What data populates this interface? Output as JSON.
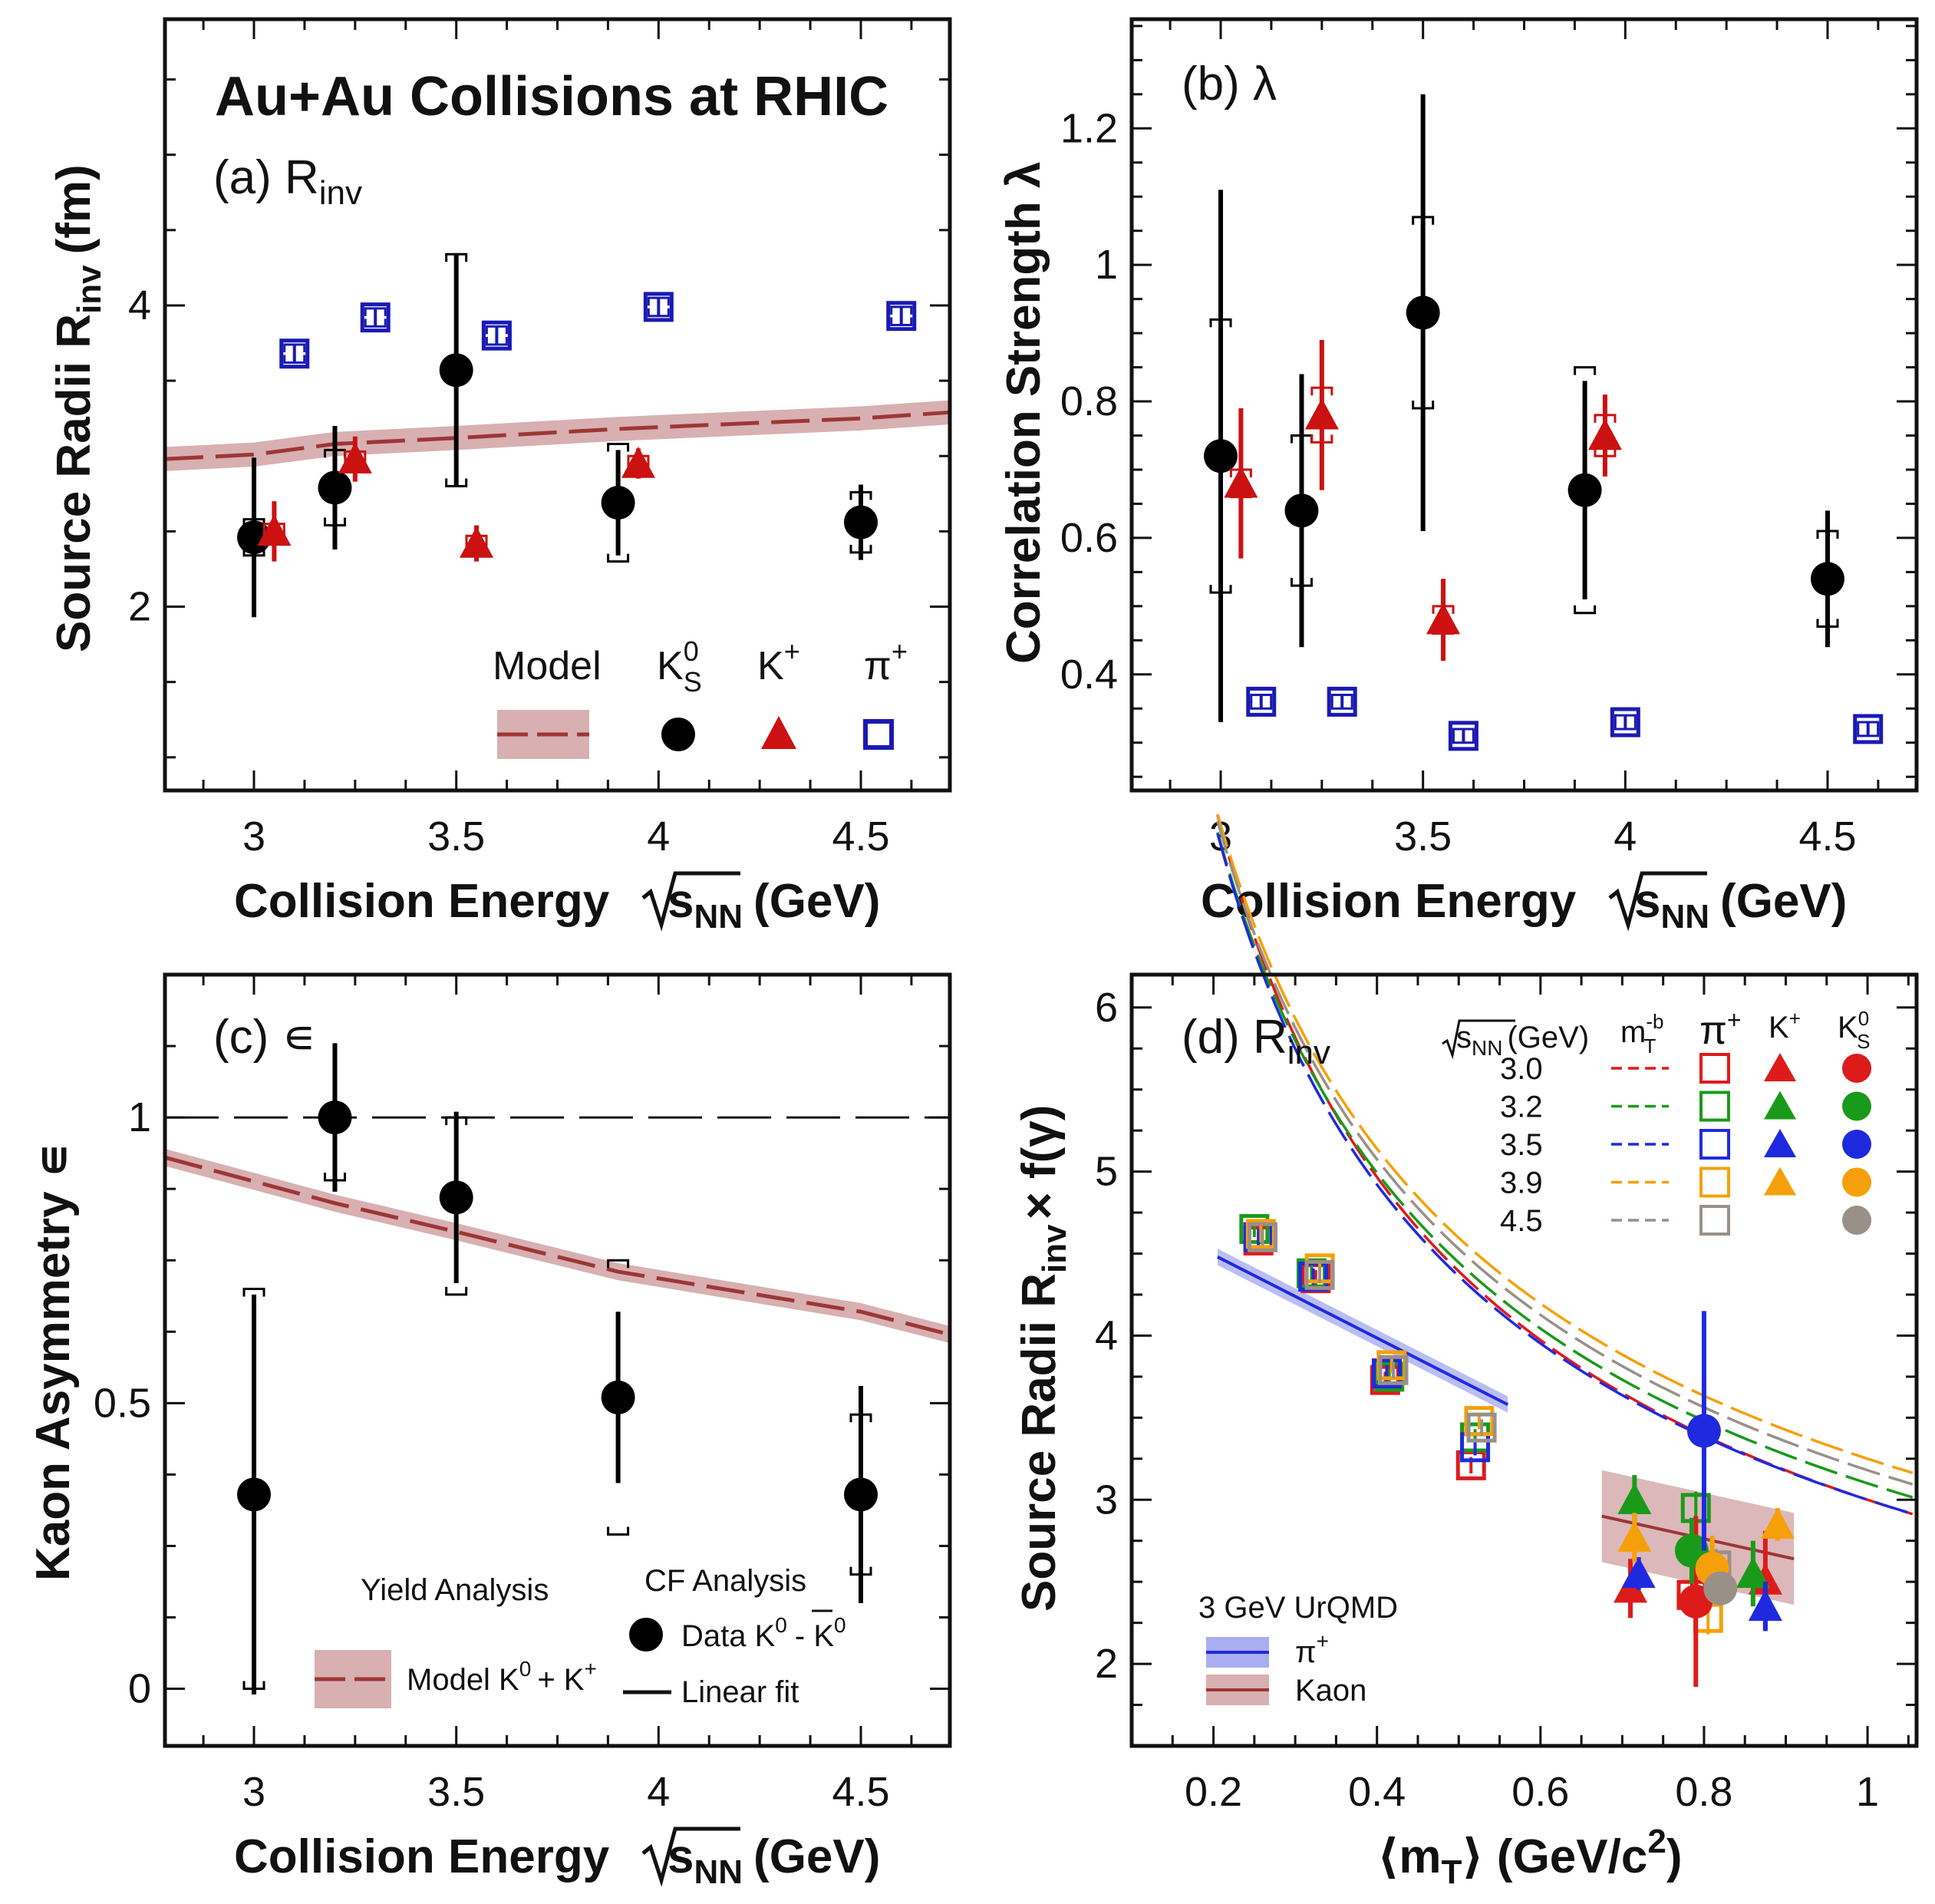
{
  "figure_title": "Au+Au Collisions at RHIC",
  "colors": {
    "ks0": "#000000",
    "kplus": "#cc1111",
    "piplus": "#1a1ab4",
    "model_line": "#9e3636",
    "model_band": "#d8b0b2",
    "e30": "#dd1b1b",
    "e32": "#1a9a1a",
    "e35": "#1f2adf",
    "e39": "#f5a00a",
    "e45": "#999088"
  },
  "chart_data": [
    {
      "id": "a",
      "type": "scatter",
      "panel_label": "(a) R",
      "panel_label_sub": "inv",
      "xlabel": "Collision Energy",
      "xlabel_sqrt": "s",
      "xlabel_sub": "NN",
      "xlabel_unit": "(GeV)",
      "ylabel": "Source Radii R",
      "ylabel_sub": "inv",
      "ylabel_unit": "(fm)",
      "xlim": [
        2.78,
        4.72
      ],
      "ylim": [
        0.78,
        5.9
      ],
      "xticks": [
        3,
        3.5,
        4,
        4.5
      ],
      "xtick_labels": [
        "3",
        "3.5",
        "4",
        "4.5"
      ],
      "yticks": [
        2,
        4
      ],
      "ytick_labels": [
        "2",
        "4"
      ],
      "legend": {
        "headers": [
          "Model",
          "K",
          "K",
          "π"
        ],
        "header_sup": [
          "",
          "0",
          "+",
          "+"
        ],
        "header_sub": [
          "",
          "S",
          "",
          ""
        ]
      },
      "model": {
        "x": [
          2.78,
          3.0,
          3.2,
          3.5,
          3.9,
          4.5,
          4.72
        ],
        "y": [
          2.98,
          3.01,
          3.08,
          3.12,
          3.18,
          3.25,
          3.29
        ],
        "band": 0.08
      },
      "series": [
        {
          "name": "K0S",
          "marker": "circle",
          "points": [
            {
              "x": 3.0,
              "y": 2.46,
              "err": 0.53,
              "sys": 0.12
            },
            {
              "x": 3.2,
              "y": 2.79,
              "err": 0.41,
              "sys": 0.25
            },
            {
              "x": 3.5,
              "y": 3.57,
              "err": 0.77,
              "sys": 0.77
            },
            {
              "x": 3.9,
              "y": 2.69,
              "err": 0.35,
              "sys": 0.39
            },
            {
              "x": 4.5,
              "y": 2.56,
              "err": 0.25,
              "sys": 0.2
            }
          ]
        },
        {
          "name": "K+",
          "marker": "triangle",
          "points": [
            {
              "x": 3.05,
              "y": 2.5,
              "err": 0.2,
              "sys": 0.05
            },
            {
              "x": 3.25,
              "y": 2.98,
              "err": 0.15,
              "sys": 0.05
            },
            {
              "x": 3.55,
              "y": 2.42,
              "err": 0.12,
              "sys": 0.05
            },
            {
              "x": 3.95,
              "y": 2.95,
              "err": 0.1,
              "sys": 0.05
            }
          ]
        },
        {
          "name": "π+",
          "marker": "square",
          "points": [
            {
              "x": 3.1,
              "y": 3.68,
              "err": 0.06,
              "sys": 0.06
            },
            {
              "x": 3.3,
              "y": 3.92,
              "err": 0.06,
              "sys": 0.06
            },
            {
              "x": 3.6,
              "y": 3.8,
              "err": 0.06,
              "sys": 0.06
            },
            {
              "x": 4.0,
              "y": 3.99,
              "err": 0.06,
              "sys": 0.06
            },
            {
              "x": 4.6,
              "y": 3.93,
              "err": 0.06,
              "sys": 0.06
            }
          ]
        }
      ]
    },
    {
      "id": "b",
      "type": "scatter",
      "panel_label": "(b) λ",
      "xlabel": "Collision Energy",
      "xlabel_sqrt": "s",
      "xlabel_sub": "NN",
      "xlabel_unit": "(GeV)",
      "ylabel": "Correlation Strength λ",
      "xlim": [
        2.78,
        4.72
      ],
      "ylim": [
        0.23,
        1.36
      ],
      "xticks": [
        3,
        3.5,
        4,
        4.5
      ],
      "xtick_labels": [
        "3",
        "3.5",
        "4",
        "4.5"
      ],
      "yticks": [
        0.4,
        0.6,
        0.8,
        1.0,
        1.2
      ],
      "ytick_labels": [
        "0.4",
        "0.6",
        "0.8",
        "1",
        "1.2"
      ],
      "series": [
        {
          "name": "K0S",
          "marker": "circle",
          "points": [
            {
              "x": 3.0,
              "y": 0.72,
              "err": 0.39,
              "sys": 0.2
            },
            {
              "x": 3.2,
              "y": 0.64,
              "err": 0.2,
              "sys": 0.11
            },
            {
              "x": 3.5,
              "y": 0.93,
              "err": 0.32,
              "sys": 0.14
            },
            {
              "x": 3.9,
              "y": 0.67,
              "err": 0.16,
              "sys": 0.18
            },
            {
              "x": 4.5,
              "y": 0.54,
              "err": 0.1,
              "sys": 0.07
            }
          ]
        },
        {
          "name": "K+",
          "marker": "triangle",
          "points": [
            {
              "x": 3.05,
              "y": 0.68,
              "err": 0.11,
              "sys": 0.02
            },
            {
              "x": 3.25,
              "y": 0.78,
              "err": 0.11,
              "sys": 0.04
            },
            {
              "x": 3.55,
              "y": 0.48,
              "err": 0.06,
              "sys": 0.02
            },
            {
              "x": 3.95,
              "y": 0.75,
              "err": 0.06,
              "sys": 0.03
            }
          ]
        },
        {
          "name": "π+",
          "marker": "square",
          "points": [
            {
              "x": 3.1,
              "y": 0.36,
              "err": 0.01,
              "sys": 0.01
            },
            {
              "x": 3.3,
              "y": 0.36,
              "err": 0.01,
              "sys": 0.01
            },
            {
              "x": 3.6,
              "y": 0.31,
              "err": 0.01,
              "sys": 0.01
            },
            {
              "x": 4.0,
              "y": 0.33,
              "err": 0.01,
              "sys": 0.01
            },
            {
              "x": 4.6,
              "y": 0.32,
              "err": 0.01,
              "sys": 0.01
            }
          ]
        }
      ]
    },
    {
      "id": "c",
      "type": "scatter",
      "panel_label": "(c) ∊",
      "xlabel": "Collision Energy",
      "xlabel_sqrt": "s",
      "xlabel_sub": "NN",
      "xlabel_unit": "(GeV)",
      "ylabel": "Kaon Asymmetry ∊",
      "xlim": [
        2.78,
        4.72
      ],
      "ylim": [
        -0.1,
        1.25
      ],
      "xticks": [
        3,
        3.5,
        4,
        4.5
      ],
      "xtick_labels": [
        "3",
        "3.5",
        "4",
        "4.5"
      ],
      "yticks": [
        0,
        0.5,
        1
      ],
      "ytick_labels": [
        "0",
        "0.5",
        "1"
      ],
      "reference_line": 1.0,
      "legend": {
        "yield_title": "Yield Analysis",
        "cf_title": "CF Analysis",
        "model_label": "Model K",
        "model_sup": "0",
        "model_tail": "+ K",
        "model_tail_sup": "+",
        "data_label": "Data K",
        "data_sup": "0",
        "data_mid": "- ",
        "data_kbar": "K",
        "data_kbar_sup": "0",
        "fit_label": "Linear fit"
      },
      "model": {
        "x": [
          2.78,
          3.2,
          3.5,
          3.9,
          4.5,
          4.72
        ],
        "y": [
          0.93,
          0.85,
          0.8,
          0.73,
          0.66,
          0.62
        ],
        "band": 0.015
      },
      "series": [
        {
          "name": "Data K0 - K̄0",
          "marker": "circle",
          "points": [
            {
              "x": 3.0,
              "y": 0.34,
              "err": 0.35,
              "sys_lo": 0.0,
              "sys_hi": 0.7
            },
            {
              "x": 3.2,
              "y": 1.0,
              "err": 0.13,
              "sys_lo": 0.89,
              "sys_hi": 1.0
            },
            {
              "x": 3.5,
              "y": 0.86,
              "err": 0.15,
              "sys_lo": 0.69,
              "sys_hi": 1.0
            },
            {
              "x": 3.9,
              "y": 0.51,
              "err": 0.15,
              "sys_lo": 0.27,
              "sys_hi": 0.75
            },
            {
              "x": 4.5,
              "y": 0.34,
              "err": 0.19,
              "sys_lo": 0.2,
              "sys_hi": 0.48
            }
          ]
        }
      ]
    },
    {
      "id": "d",
      "type": "scatter",
      "panel_label": "(d) R",
      "panel_label_sub": "inv",
      "xlabel": "⟨m",
      "xlabel_sub": "T",
      "xlabel_unit": "⟩ (GeV/c",
      "xlabel_sup": "2",
      "xlabel_close": ")",
      "ylabel": "Source Radii R",
      "ylabel_sub": "inv",
      "ylabel_tail": "× f(γ)",
      "xlim": [
        0.1,
        1.06
      ],
      "ylim": [
        1.5,
        6.2
      ],
      "xticks": [
        0.2,
        0.4,
        0.6,
        0.8,
        1.0
      ],
      "xtick_labels": [
        "0.2",
        "0.4",
        "0.6",
        "0.8",
        "1"
      ],
      "yticks": [
        2,
        3,
        4,
        5,
        6
      ],
      "ytick_labels": [
        "2",
        "3",
        "4",
        "5",
        "6"
      ],
      "legend": {
        "energy_header": "s",
        "energy_header_sub": "NN",
        "energy_header_unit": "(GeV)",
        "fit_header": "m",
        "fit_header_sub": "T",
        "fit_header_sup": "-b",
        "pi_header": "π",
        "pi_header_sup": "+",
        "k_header": "K",
        "k_header_sup": "+",
        "ks_header": "K",
        "ks_header_sup": "0",
        "ks_header_sub": "S",
        "energies": [
          "3.0",
          "3.2",
          "3.5",
          "3.9",
          "4.5"
        ],
        "urqmd_title": "3 GeV UrQMD",
        "urqmd_pi": "π",
        "urqmd_pi_sup": "+",
        "urqmd_kaon": "Kaon"
      },
      "fit_curves": [
        {
          "energy": "3.0",
          "a": 3.0,
          "b": 0.55
        },
        {
          "energy": "3.2",
          "a": 3.1,
          "b": 0.52
        },
        {
          "energy": "3.5",
          "a": 3.0,
          "b": 0.54
        },
        {
          "energy": "3.9",
          "a": 3.25,
          "b": 0.5
        },
        {
          "energy": "4.5",
          "a": 3.18,
          "b": 0.51
        }
      ],
      "fit_xrange": [
        0.205,
        1.06
      ],
      "urqmd_pi": {
        "x": [
          0.205,
          0.56
        ],
        "y": [
          4.48,
          3.58
        ],
        "band": 0.05
      },
      "urqmd_kaon": {
        "x": [
          0.675,
          0.91
        ],
        "y": [
          2.9,
          2.64
        ],
        "band": 0.28
      },
      "series": [
        {
          "name": "π+ 3.0",
          "energy": "3.0",
          "marker": "square",
          "points": [
            {
              "x": 0.255,
              "y": 4.58,
              "err": 0.05
            },
            {
              "x": 0.325,
              "y": 4.35,
              "err": 0.05
            },
            {
              "x": 0.41,
              "y": 3.73,
              "err": 0.05
            },
            {
              "x": 0.515,
              "y": 3.21,
              "err": 0.05
            },
            {
              "x": 0.785,
              "y": 2.42,
              "err": 0.1
            }
          ]
        },
        {
          "name": "π+ 3.2",
          "energy": "3.2",
          "marker": "square",
          "points": [
            {
              "x": 0.25,
              "y": 4.65,
              "err": 0.05
            },
            {
              "x": 0.32,
              "y": 4.38,
              "err": 0.05
            },
            {
              "x": 0.415,
              "y": 3.75,
              "err": 0.05
            },
            {
              "x": 0.52,
              "y": 3.38,
              "err": 0.05
            },
            {
              "x": 0.79,
              "y": 2.95,
              "err": 0.1
            }
          ]
        },
        {
          "name": "π+ 3.5",
          "energy": "3.5",
          "marker": "square",
          "points": [
            {
              "x": 0.255,
              "y": 4.6,
              "err": 0.05
            },
            {
              "x": 0.322,
              "y": 4.36,
              "err": 0.05
            },
            {
              "x": 0.412,
              "y": 3.77,
              "err": 0.05
            },
            {
              "x": 0.52,
              "y": 3.32,
              "err": 0.05
            }
          ]
        },
        {
          "name": "π+ 3.9",
          "energy": "3.9",
          "marker": "square",
          "points": [
            {
              "x": 0.258,
              "y": 4.62,
              "err": 0.05
            },
            {
              "x": 0.33,
              "y": 4.41,
              "err": 0.05
            },
            {
              "x": 0.418,
              "y": 3.82,
              "err": 0.05
            },
            {
              "x": 0.525,
              "y": 3.48,
              "err": 0.05
            },
            {
              "x": 0.805,
              "y": 2.28,
              "err": 0.1
            }
          ]
        },
        {
          "name": "π+ 4.5",
          "energy": "4.5",
          "marker": "square",
          "points": [
            {
              "x": 0.26,
              "y": 4.6,
              "err": 0.05
            },
            {
              "x": 0.33,
              "y": 4.37,
              "err": 0.05
            },
            {
              "x": 0.42,
              "y": 3.79,
              "err": 0.05
            },
            {
              "x": 0.528,
              "y": 3.44,
              "err": 0.05
            },
            {
              "x": 0.815,
              "y": 2.6,
              "err": 0.1
            }
          ]
        },
        {
          "name": "K+ 3.0",
          "energy": "3.0",
          "marker": "triangle",
          "points": [
            {
              "x": 0.71,
              "y": 2.46,
              "err": 0.18
            },
            {
              "x": 0.875,
              "y": 2.51,
              "err": 0.3
            }
          ]
        },
        {
          "name": "K+ 3.2",
          "energy": "3.2",
          "marker": "triangle",
          "points": [
            {
              "x": 0.715,
              "y": 3.0,
              "err": 0.15
            },
            {
              "x": 0.86,
              "y": 2.55,
              "err": 0.2
            }
          ]
        },
        {
          "name": "K+ 3.5",
          "energy": "3.5",
          "marker": "triangle",
          "points": [
            {
              "x": 0.72,
              "y": 2.55,
              "err": 0.1
            },
            {
              "x": 0.875,
              "y": 2.35,
              "err": 0.15
            }
          ]
        },
        {
          "name": "K+ 3.9",
          "energy": "3.9",
          "marker": "triangle",
          "points": [
            {
              "x": 0.715,
              "y": 2.77,
              "err": 0.15
            },
            {
              "x": 0.89,
              "y": 2.85,
              "err": 0.1
            }
          ]
        },
        {
          "name": "K0S 3.0",
          "energy": "3.0",
          "marker": "circle",
          "points": [
            {
              "x": 0.79,
              "y": 2.38,
              "err": 0.52
            }
          ]
        },
        {
          "name": "K0S 3.2",
          "energy": "3.2",
          "marker": "circle",
          "points": [
            {
              "x": 0.785,
              "y": 2.69,
              "err": 0.2
            }
          ]
        },
        {
          "name": "K0S 3.5",
          "energy": "3.5",
          "marker": "circle",
          "points": [
            {
              "x": 0.8,
              "y": 3.42,
              "err": 0.73
            }
          ]
        },
        {
          "name": "K0S 3.9",
          "energy": "3.9",
          "marker": "circle",
          "points": [
            {
              "x": 0.81,
              "y": 2.58,
              "err": 0.2
            }
          ]
        },
        {
          "name": "K0S 4.5",
          "energy": "4.5",
          "marker": "circle",
          "points": [
            {
              "x": 0.82,
              "y": 2.46,
              "err": 0.1
            }
          ]
        }
      ]
    }
  ]
}
